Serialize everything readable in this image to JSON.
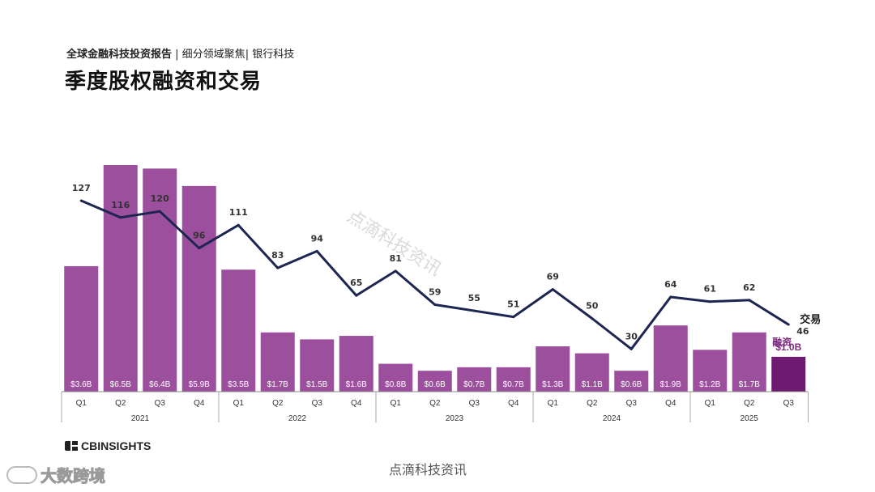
{
  "header": {
    "report": "全球金融科技投资报告",
    "sep1": " | ",
    "segment": "细分领域聚焦",
    "sep2": "| ",
    "topic": "银行科技"
  },
  "title": "季度股权融资和交易",
  "chart_data": {
    "type": "bar+line",
    "years": [
      {
        "label": "2021",
        "quarters": [
          "Q1",
          "Q2",
          "Q3",
          "Q4"
        ]
      },
      {
        "label": "2022",
        "quarters": [
          "Q1",
          "Q2",
          "Q3",
          "Q4"
        ]
      },
      {
        "label": "2023",
        "quarters": [
          "Q1",
          "Q2",
          "Q3",
          "Q4"
        ]
      },
      {
        "label": "2024",
        "quarters": [
          "Q1",
          "Q2",
          "Q3",
          "Q4"
        ]
      },
      {
        "label": "2025",
        "quarters": [
          "Q1",
          "Q2",
          "Q3"
        ]
      }
    ],
    "funding": {
      "name": "融资",
      "values": [
        3.6,
        6.5,
        6.4,
        5.9,
        3.5,
        1.7,
        1.5,
        1.6,
        0.8,
        0.6,
        0.7,
        0.7,
        1.3,
        1.1,
        0.6,
        1.9,
        1.2,
        1.7,
        1.0
      ],
      "labels": [
        "$3.6B",
        "$6.5B",
        "$6.4B",
        "$5.9B",
        "$3.5B",
        "$1.7B",
        "$1.5B",
        "$1.6B",
        "$0.8B",
        "$0.6B",
        "$0.7B",
        "$0.7B",
        "$1.3B",
        "$1.1B",
        "$0.6B",
        "$1.9B",
        "$1.2B",
        "$1.7B",
        "$1.0B"
      ],
      "color": "#9b4f9c",
      "highlight_color": "#6e1a70",
      "highlight_label_color": "#7a2a7c"
    },
    "deals": {
      "name": "交易",
      "values": [
        127,
        116,
        120,
        96,
        111,
        83,
        94,
        65,
        81,
        59,
        55,
        51,
        69,
        50,
        30,
        64,
        61,
        62,
        46
      ],
      "color": "#1d2551"
    }
  },
  "footer": {
    "logo_text": "CBINSIGHTS",
    "watermark": "点滴科技资讯",
    "corner": "大数跨境"
  }
}
